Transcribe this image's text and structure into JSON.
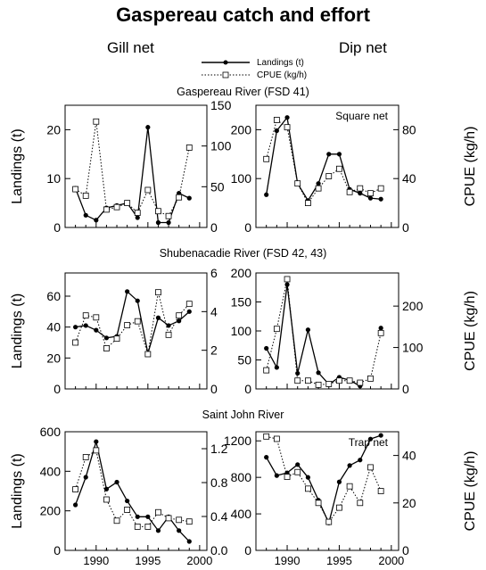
{
  "title": "Gaspereau catch and effort",
  "columns": [
    "Gill net",
    "Dip net"
  ],
  "legend": {
    "landings": "Landings (t)",
    "cpue": "CPUE (kg/h)"
  },
  "rows": [
    "Gaspereau River (FSD 41)",
    "Shubenacadie River (FSD 42, 43)",
    "Saint John River"
  ],
  "axis_labels": {
    "left": "Landings (t)",
    "right": "CPUE (kg/h)"
  },
  "x_ticks": [
    "1990",
    "1995",
    "2000"
  ],
  "chart_data": [
    {
      "type": "line",
      "row": 0,
      "col": 0,
      "x": [
        1988,
        1989,
        1990,
        1991,
        1992,
        1993,
        1994,
        1995,
        1996,
        1997,
        1998,
        1999
      ],
      "ylim_left": [
        0,
        25
      ],
      "ylim_right": [
        0,
        150
      ],
      "yticks_left": [
        0,
        10,
        20
      ],
      "yticks_right": [
        0,
        50,
        100,
        150
      ],
      "series": [
        {
          "name": "Landings (t)",
          "axis": "left",
          "values": [
            8,
            2.5,
            1.5,
            4,
            4.5,
            5,
            2,
            20.5,
            1,
            1,
            7,
            6
          ]
        },
        {
          "name": "CPUE (kg/h)",
          "axis": "right",
          "values": [
            47,
            39,
            130,
            22,
            25,
            30,
            18,
            46,
            20,
            14,
            37,
            98
          ]
        }
      ]
    },
    {
      "type": "line",
      "row": 0,
      "col": 1,
      "annotation": "Square net",
      "x": [
        1988,
        1989,
        1990,
        1991,
        1992,
        1993,
        1994,
        1995,
        1996,
        1997,
        1998,
        1999
      ],
      "ylim_left": [
        0,
        250
      ],
      "ylim_right": [
        0,
        100
      ],
      "yticks_left": [
        0,
        100,
        200
      ],
      "yticks_right": [
        0,
        40,
        80
      ],
      "series": [
        {
          "name": "Landings (t)",
          "axis": "left",
          "values": [
            67,
            198,
            225,
            90,
            55,
            90,
            150,
            150,
            78,
            70,
            60,
            58
          ]
        },
        {
          "name": "CPUE (kg/h)",
          "axis": "right",
          "values": [
            56,
            88,
            82,
            36,
            20,
            32,
            42,
            48,
            29,
            32,
            28,
            32
          ]
        }
      ]
    },
    {
      "type": "line",
      "row": 1,
      "col": 0,
      "x": [
        1988,
        1989,
        1990,
        1991,
        1992,
        1993,
        1994,
        1995,
        1996,
        1997,
        1998,
        1999
      ],
      "ylim_left": [
        0,
        75
      ],
      "ylim_right": [
        0,
        6
      ],
      "yticks_left": [
        0,
        20,
        40,
        60
      ],
      "yticks_right": [
        0,
        2,
        4,
        6
      ],
      "series": [
        {
          "name": "Landings (t)",
          "axis": "left",
          "values": [
            40,
            41,
            38,
            33,
            34,
            63,
            57,
            23,
            46,
            41,
            44,
            50
          ]
        },
        {
          "name": "CPUE (kg/h)",
          "axis": "right",
          "values": [
            2.4,
            3.8,
            3.7,
            2.1,
            2.6,
            3.3,
            3.5,
            1.8,
            5.0,
            2.8,
            3.8,
            4.4
          ]
        }
      ]
    },
    {
      "type": "line",
      "row": 1,
      "col": 1,
      "x": [
        1988,
        1989,
        1990,
        1991,
        1992,
        1993,
        1994,
        1995,
        1996,
        1997,
        1998,
        1999
      ],
      "ylim_left": [
        0,
        200
      ],
      "ylim_right": [
        0,
        280
      ],
      "yticks_left": [
        0,
        50,
        100,
        150,
        200
      ],
      "yticks_right": [
        0,
        100,
        200
      ],
      "series": [
        {
          "name": "Landings (t)",
          "axis": "left",
          "values": [
            70,
            37,
            180,
            27,
            102,
            28,
            8,
            20,
            15,
            5,
            null,
            105
          ]
        },
        {
          "name": "CPUE (kg/h)",
          "axis": "right",
          "values": [
            45,
            145,
            265,
            20,
            20,
            10,
            12,
            20,
            20,
            15,
            25,
            135
          ]
        }
      ]
    },
    {
      "type": "line",
      "row": 2,
      "col": 0,
      "x": [
        1988,
        1989,
        1990,
        1991,
        1992,
        1993,
        1994,
        1995,
        1996,
        1997,
        1998,
        1999
      ],
      "ylim_left": [
        0,
        600
      ],
      "ylim_right": [
        0,
        1.4
      ],
      "yticks_left": [
        0,
        200,
        400,
        600
      ],
      "yticks_right": [
        "0.0",
        "0.4",
        "0.8",
        "1.2"
      ],
      "series": [
        {
          "name": "Landings (t)",
          "axis": "left",
          "values": [
            230,
            370,
            550,
            310,
            345,
            250,
            170,
            170,
            100,
            170,
            100,
            45
          ]
        },
        {
          "name": "CPUE (kg/h)",
          "axis": "right",
          "values": [
            0.72,
            1.1,
            1.18,
            0.6,
            0.35,
            0.48,
            0.28,
            0.28,
            0.45,
            0.38,
            0.36,
            0.34
          ]
        }
      ]
    },
    {
      "type": "line",
      "row": 2,
      "col": 1,
      "annotation": "Trap net",
      "x": [
        1988,
        1989,
        1990,
        1991,
        1992,
        1993,
        1994,
        1995,
        1996,
        1997,
        1998,
        1999
      ],
      "ylim_left": [
        0,
        1300
      ],
      "ylim_right": [
        0,
        50
      ],
      "yticks_left": [
        0,
        400,
        800,
        1200
      ],
      "yticks_right": [
        0,
        20,
        40
      ],
      "series": [
        {
          "name": "Landings (t)",
          "axis": "left",
          "values": [
            1020,
            820,
            850,
            940,
            800,
            550,
            300,
            750,
            930,
            990,
            1220,
            1260
          ]
        },
        {
          "name": "CPUE (kg/h)",
          "axis": "right",
          "values": [
            48,
            47,
            31,
            33,
            26,
            20,
            12,
            18,
            27,
            20,
            35,
            25
          ]
        }
      ]
    }
  ]
}
